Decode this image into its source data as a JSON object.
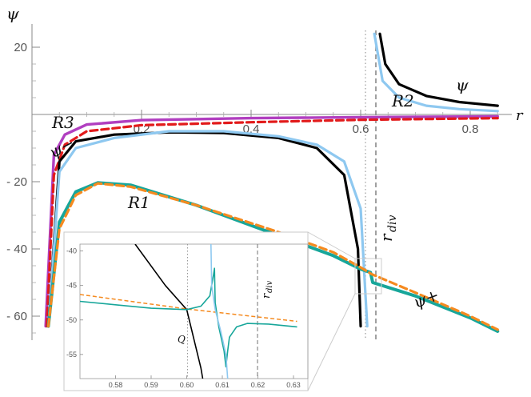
{
  "chart_data": {
    "type": "line",
    "xlabel": "r",
    "ylabel": "ψ",
    "xlim": [
      0,
      0.85
    ],
    "ylim": [
      -66,
      24
    ],
    "x_ticks": [
      "0.2",
      "0.4",
      "0.6",
      "0.8"
    ],
    "y_ticks": [
      "20",
      "- 20",
      "- 40",
      "- 60"
    ],
    "vertical_lines": [
      {
        "name": "Q",
        "x": 0.6,
        "style": "dotted"
      },
      {
        "name": "r_div",
        "x": 0.619,
        "style": "dashed"
      }
    ],
    "annotations": {
      "r3": "R3",
      "psi_minus": "ψ−",
      "r1": "R1",
      "psi_plus": "ψ+",
      "r2": "R2",
      "psi": "ψ",
      "rdiv_main": "r",
      "rdiv_sub": "div"
    },
    "series": [
      {
        "name": "R3",
        "color": "#b13fc0",
        "points": [
          [
            0.025,
            -63
          ],
          [
            0.04,
            -12
          ],
          [
            0.06,
            -6
          ],
          [
            0.1,
            -3
          ],
          [
            0.2,
            -1.7
          ],
          [
            0.4,
            -1.1
          ],
          [
            0.6,
            -0.8
          ],
          [
            0.85,
            -0.6
          ]
        ]
      },
      {
        "name": "dashed-red",
        "color": "#e21b1b",
        "points": [
          [
            0.027,
            -63
          ],
          [
            0.04,
            -18
          ],
          [
            0.06,
            -9
          ],
          [
            0.1,
            -5
          ],
          [
            0.2,
            -3.2
          ],
          [
            0.4,
            -2.3
          ],
          [
            0.6,
            -1.6
          ],
          [
            0.85,
            -1.1
          ]
        ]
      },
      {
        "name": "psi-minus",
        "color": "#000000",
        "points": [
          [
            0.03,
            -63
          ],
          [
            0.05,
            -14
          ],
          [
            0.08,
            -8
          ],
          [
            0.15,
            -6
          ],
          [
            0.25,
            -5.3
          ],
          [
            0.35,
            -5.5
          ],
          [
            0.45,
            -7
          ],
          [
            0.52,
            -10
          ],
          [
            0.57,
            -18
          ],
          [
            0.595,
            -40
          ],
          [
            0.6,
            -63
          ]
        ]
      },
      {
        "name": "light-blue-lower",
        "color": "#8ec8f0",
        "points": [
          [
            0.03,
            -63
          ],
          [
            0.05,
            -17
          ],
          [
            0.08,
            -10
          ],
          [
            0.15,
            -7
          ],
          [
            0.25,
            -5
          ],
          [
            0.35,
            -5
          ],
          [
            0.45,
            -6.5
          ],
          [
            0.52,
            -9
          ],
          [
            0.57,
            -14
          ],
          [
            0.6,
            -28
          ],
          [
            0.612,
            -63
          ]
        ]
      },
      {
        "name": "psi-plus",
        "color": "#f58a1f",
        "points": [
          [
            0.03,
            -63
          ],
          [
            0.05,
            -34
          ],
          [
            0.08,
            -24
          ],
          [
            0.12,
            -20.5
          ],
          [
            0.18,
            -21.5
          ],
          [
            0.3,
            -27
          ],
          [
            0.45,
            -35
          ],
          [
            0.55,
            -41
          ],
          [
            0.6,
            -45.5
          ],
          [
            0.62,
            -47.5
          ],
          [
            0.7,
            -53
          ],
          [
            0.8,
            -60
          ],
          [
            0.85,
            -64
          ]
        ]
      },
      {
        "name": "R1",
        "color": "#17a69a",
        "points": [
          [
            0.03,
            -63
          ],
          [
            0.05,
            -32
          ],
          [
            0.08,
            -23
          ],
          [
            0.12,
            -20.3
          ],
          [
            0.18,
            -21
          ],
          [
            0.3,
            -27
          ],
          [
            0.45,
            -36
          ],
          [
            0.55,
            -42
          ],
          [
            0.6,
            -46
          ],
          [
            0.618,
            -47
          ],
          [
            0.622,
            -50
          ],
          [
            0.7,
            -54
          ],
          [
            0.8,
            -60.5
          ],
          [
            0.85,
            -64.5
          ]
        ]
      },
      {
        "name": "psi-upper",
        "color": "#000000",
        "points": [
          [
            0.635,
            24
          ],
          [
            0.645,
            15
          ],
          [
            0.67,
            9
          ],
          [
            0.72,
            5.5
          ],
          [
            0.78,
            3.7
          ],
          [
            0.85,
            2.6
          ]
        ]
      },
      {
        "name": "R2-upper",
        "color": "#8ec8f0",
        "points": [
          [
            0.625,
            24
          ],
          [
            0.64,
            10
          ],
          [
            0.67,
            5
          ],
          [
            0.72,
            2.6
          ],
          [
            0.78,
            1.6
          ],
          [
            0.85,
            1
          ]
        ]
      }
    ],
    "inset": {
      "xlim": [
        0.57,
        0.631
      ],
      "ylim": [
        -58.5,
        -39
      ],
      "x_ticks": [
        "0.58",
        "0.59",
        "0.60",
        "0.61",
        "0.62",
        "0.63"
      ],
      "y_ticks": [
        "-40",
        "-45",
        "-50",
        "-55"
      ],
      "labels": {
        "q": "Q",
        "rdiv_main": "r",
        "rdiv_sub": "div"
      },
      "series": [
        {
          "name": "black",
          "color": "#000000",
          "points": [
            [
              0.5855,
              -39
            ],
            [
              0.594,
              -45
            ],
            [
              0.6,
              -48.5
            ],
            [
              0.604,
              -57
            ],
            [
              0.6045,
              -58.5
            ]
          ]
        },
        {
          "name": "orange-dashed",
          "color": "#f58a1f",
          "points": [
            [
              0.57,
              -46.3
            ],
            [
              0.6,
              -48.4
            ],
            [
              0.631,
              -50.2
            ]
          ]
        },
        {
          "name": "teal",
          "color": "#17a69a",
          "points": [
            [
              0.57,
              -47.3
            ],
            [
              0.58,
              -47.8
            ],
            [
              0.59,
              -48.3
            ],
            [
              0.6,
              -48.5
            ],
            [
              0.604,
              -48
            ],
            [
              0.6065,
              -46.5
            ],
            [
              0.6075,
              -43.5
            ],
            [
              0.6078,
              -42.5
            ],
            [
              0.608,
              -47.5
            ],
            [
              0.609,
              -51
            ],
            [
              0.6105,
              -54.5
            ],
            [
              0.611,
              -56.8
            ],
            [
              0.6115,
              -54.5
            ],
            [
              0.612,
              -52.5
            ],
            [
              0.614,
              -51
            ],
            [
              0.617,
              -50.5
            ],
            [
              0.623,
              -50.6
            ],
            [
              0.631,
              -51
            ]
          ]
        },
        {
          "name": "light-blue",
          "color": "#8ec8f0",
          "points": [
            [
              0.6068,
              -39
            ],
            [
              0.607,
              -45
            ],
            [
              0.608,
              -48.5
            ],
            [
              0.6095,
              -51.5
            ],
            [
              0.611,
              -55
            ],
            [
              0.6115,
              -58.5
            ]
          ]
        }
      ]
    }
  }
}
